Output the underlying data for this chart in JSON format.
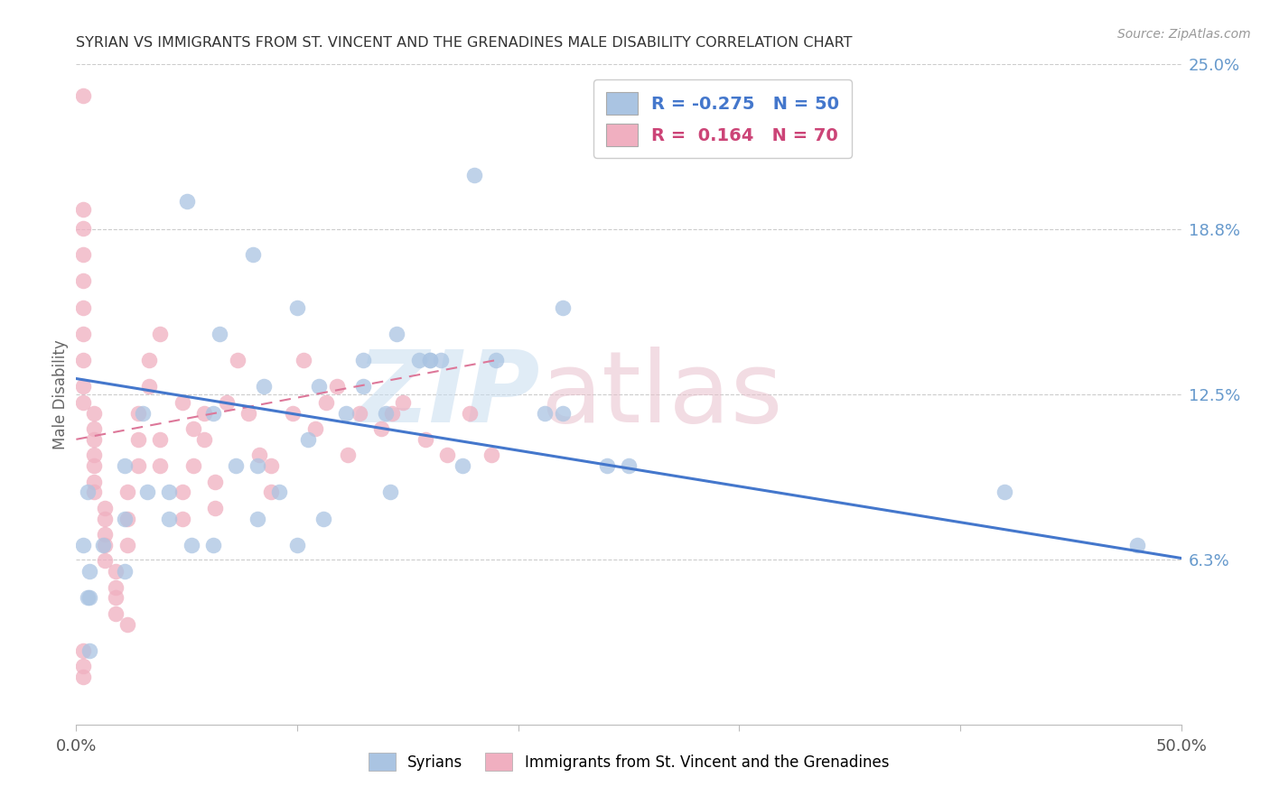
{
  "title": "SYRIAN VS IMMIGRANTS FROM ST. VINCENT AND THE GRENADINES MALE DISABILITY CORRELATION CHART",
  "source": "Source: ZipAtlas.com",
  "ylabel": "Male Disability",
  "xlim": [
    0.0,
    0.5
  ],
  "ylim": [
    0.0,
    0.25
  ],
  "yticks": [
    0.0625,
    0.125,
    0.1875,
    0.25
  ],
  "ytick_labels": [
    "6.3%",
    "12.5%",
    "18.8%",
    "25.0%"
  ],
  "xticks": [
    0.0,
    0.1,
    0.2,
    0.3,
    0.4,
    0.5
  ],
  "xtick_labels": [
    "0.0%",
    "",
    "",
    "",
    "",
    "50.0%"
  ],
  "blue_color": "#aac4e2",
  "pink_color": "#f0afc0",
  "blue_line_color": "#4477cc",
  "pink_line_color": "#dd7799",
  "grid_color": "#cccccc",
  "watermark_blue": "#c8ddf0",
  "watermark_pink": "#e8c0cc",
  "legend_r_blue": "-0.275",
  "legend_n_blue": "50",
  "legend_r_pink": "0.164",
  "legend_n_pink": "70",
  "blue_line_x0": 0.0,
  "blue_line_y0": 0.131,
  "blue_line_x1": 0.5,
  "blue_line_y1": 0.063,
  "pink_line_x0": 0.0,
  "pink_line_y0": 0.108,
  "pink_line_x1": 0.19,
  "pink_line_y1": 0.138,
  "blue_x": [
    0.003,
    0.03,
    0.05,
    0.08,
    0.1,
    0.13,
    0.16,
    0.165,
    0.18,
    0.22,
    0.085,
    0.105,
    0.13,
    0.155,
    0.19,
    0.065,
    0.25,
    0.11,
    0.14,
    0.145,
    0.16,
    0.175,
    0.22,
    0.005,
    0.012,
    0.022,
    0.032,
    0.042,
    0.052,
    0.062,
    0.072,
    0.082,
    0.092,
    0.1,
    0.112,
    0.122,
    0.24,
    0.006,
    0.022,
    0.042,
    0.062,
    0.082,
    0.142,
    0.212,
    0.006,
    0.022,
    0.42,
    0.48,
    0.006,
    0.005
  ],
  "blue_y": [
    0.068,
    0.118,
    0.198,
    0.178,
    0.158,
    0.138,
    0.138,
    0.138,
    0.208,
    0.158,
    0.128,
    0.108,
    0.128,
    0.138,
    0.138,
    0.148,
    0.098,
    0.128,
    0.118,
    0.148,
    0.138,
    0.098,
    0.118,
    0.088,
    0.068,
    0.098,
    0.088,
    0.078,
    0.068,
    0.068,
    0.098,
    0.078,
    0.088,
    0.068,
    0.078,
    0.118,
    0.098,
    0.058,
    0.078,
    0.088,
    0.118,
    0.098,
    0.088,
    0.118,
    0.048,
    0.058,
    0.088,
    0.068,
    0.028,
    0.048
  ],
  "pink_x": [
    0.003,
    0.003,
    0.003,
    0.003,
    0.003,
    0.003,
    0.003,
    0.003,
    0.003,
    0.003,
    0.008,
    0.008,
    0.008,
    0.008,
    0.008,
    0.008,
    0.008,
    0.013,
    0.013,
    0.013,
    0.013,
    0.013,
    0.018,
    0.018,
    0.018,
    0.018,
    0.023,
    0.023,
    0.023,
    0.023,
    0.028,
    0.028,
    0.028,
    0.033,
    0.033,
    0.038,
    0.038,
    0.038,
    0.048,
    0.048,
    0.048,
    0.053,
    0.053,
    0.058,
    0.058,
    0.063,
    0.063,
    0.068,
    0.073,
    0.078,
    0.083,
    0.088,
    0.088,
    0.098,
    0.103,
    0.108,
    0.113,
    0.118,
    0.123,
    0.128,
    0.138,
    0.143,
    0.148,
    0.158,
    0.168,
    0.178,
    0.188,
    0.003,
    0.003,
    0.003
  ],
  "pink_y": [
    0.238,
    0.195,
    0.188,
    0.178,
    0.168,
    0.158,
    0.148,
    0.138,
    0.128,
    0.122,
    0.118,
    0.112,
    0.108,
    0.102,
    0.098,
    0.092,
    0.088,
    0.082,
    0.078,
    0.072,
    0.068,
    0.062,
    0.058,
    0.052,
    0.048,
    0.042,
    0.038,
    0.068,
    0.078,
    0.088,
    0.098,
    0.108,
    0.118,
    0.128,
    0.138,
    0.148,
    0.108,
    0.098,
    0.088,
    0.078,
    0.122,
    0.098,
    0.112,
    0.118,
    0.108,
    0.092,
    0.082,
    0.122,
    0.138,
    0.118,
    0.102,
    0.098,
    0.088,
    0.118,
    0.138,
    0.112,
    0.122,
    0.128,
    0.102,
    0.118,
    0.112,
    0.118,
    0.122,
    0.108,
    0.102,
    0.118,
    0.102,
    0.018,
    0.022,
    0.028
  ]
}
